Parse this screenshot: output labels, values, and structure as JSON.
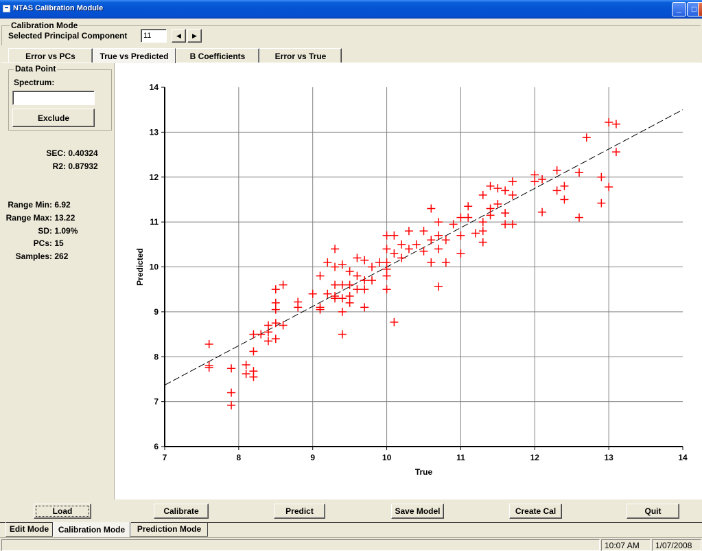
{
  "window": {
    "title": "NTAS Calibration Module"
  },
  "calibration_group": {
    "label": "Calibration Mode",
    "pc_label": "Selected Principal Component",
    "pc_value": "11",
    "prev_symbol": "◀",
    "next_symbol": "▶"
  },
  "view_tabs": [
    {
      "label": "Error vs PCs",
      "active": false
    },
    {
      "label": "True vs Predicted",
      "active": true
    },
    {
      "label": "B Coefficients",
      "active": false
    },
    {
      "label": "Error vs True",
      "active": false
    }
  ],
  "data_point": {
    "label": "Data Point",
    "spectrum_label": "Spectrum:",
    "spectrum_value": "",
    "exclude_label": "Exclude"
  },
  "stats": {
    "sec_label": "SEC:",
    "sec_value": "0.40324",
    "r2_label": "R2:",
    "r2_value": "0.87932",
    "range_min_label": "Range Min:",
    "range_min_value": "6.92",
    "range_max_label": "Range Max:",
    "range_max_value": "13.22",
    "sd_label": "SD:",
    "sd_value": "1.09%",
    "pcs_label": "PCs:",
    "pcs_value": "15",
    "samples_label": "Samples:",
    "samples_value": "262"
  },
  "actions": {
    "load": "Load",
    "calibrate": "Calibrate",
    "predict": "Predict",
    "save_model": "Save Model",
    "create_cal": "Create Cal",
    "quit": "Quit"
  },
  "mode_tabs": [
    {
      "label": "Edit Mode",
      "active": false
    },
    {
      "label": "Calibration Mode",
      "active": true
    },
    {
      "label": "Prediction Mode",
      "active": false
    }
  ],
  "status": {
    "time": "10:07 AM",
    "date": "1/07/2008"
  },
  "colors": {
    "marker": "#ff0000",
    "fit_line": "#000000",
    "grid": "#808080"
  },
  "chart_data": {
    "type": "scatter",
    "xlabel": "True",
    "ylabel": "Predicted",
    "xlim": [
      7,
      14
    ],
    "ylim": [
      6,
      14
    ],
    "xticks": [
      7,
      8,
      9,
      10,
      11,
      12,
      13,
      14
    ],
    "yticks": [
      6,
      7,
      8,
      9,
      10,
      11,
      12,
      13,
      14
    ],
    "grid": true,
    "marker": "plus",
    "fit_line": {
      "x": [
        7,
        14
      ],
      "y": [
        7.37,
        13.5
      ],
      "style": "dashed"
    },
    "points": [
      [
        7.6,
        8.28
      ],
      [
        7.6,
        7.8
      ],
      [
        7.6,
        7.76
      ],
      [
        7.9,
        7.74
      ],
      [
        7.9,
        7.2
      ],
      [
        7.9,
        6.92
      ],
      [
        8.1,
        7.82
      ],
      [
        8.1,
        7.62
      ],
      [
        8.2,
        8.5
      ],
      [
        8.2,
        8.12
      ],
      [
        8.2,
        7.68
      ],
      [
        8.2,
        7.55
      ],
      [
        8.3,
        8.5
      ],
      [
        8.4,
        8.7
      ],
      [
        8.4,
        8.55
      ],
      [
        8.4,
        8.35
      ],
      [
        8.5,
        9.5
      ],
      [
        8.5,
        9.2
      ],
      [
        8.5,
        9.05
      ],
      [
        8.5,
        8.75
      ],
      [
        8.5,
        8.4
      ],
      [
        8.6,
        9.6
      ],
      [
        8.6,
        8.7
      ],
      [
        8.8,
        9.22
      ],
      [
        8.8,
        9.1
      ],
      [
        9.0,
        9.4
      ],
      [
        9.1,
        9.8
      ],
      [
        9.1,
        9.1
      ],
      [
        9.1,
        9.05
      ],
      [
        9.2,
        10.1
      ],
      [
        9.2,
        9.4
      ],
      [
        9.3,
        10.4
      ],
      [
        9.3,
        10.0
      ],
      [
        9.3,
        9.6
      ],
      [
        9.3,
        9.35
      ],
      [
        9.3,
        9.3
      ],
      [
        9.4,
        10.05
      ],
      [
        9.4,
        9.6
      ],
      [
        9.4,
        9.3
      ],
      [
        9.4,
        9.0
      ],
      [
        9.4,
        8.5
      ],
      [
        9.5,
        9.9
      ],
      [
        9.5,
        9.6
      ],
      [
        9.5,
        9.35
      ],
      [
        9.5,
        9.2
      ],
      [
        9.6,
        10.2
      ],
      [
        9.6,
        9.8
      ],
      [
        9.6,
        9.5
      ],
      [
        9.7,
        10.15
      ],
      [
        9.7,
        9.7
      ],
      [
        9.7,
        9.5
      ],
      [
        9.7,
        9.1
      ],
      [
        9.8,
        10.0
      ],
      [
        9.8,
        9.7
      ],
      [
        9.9,
        10.1
      ],
      [
        10.0,
        10.7
      ],
      [
        10.0,
        10.4
      ],
      [
        10.0,
        10.1
      ],
      [
        10.0,
        9.95
      ],
      [
        10.0,
        9.8
      ],
      [
        10.0,
        9.5
      ],
      [
        10.1,
        10.7
      ],
      [
        10.1,
        10.3
      ],
      [
        10.1,
        8.77
      ],
      [
        10.2,
        10.5
      ],
      [
        10.2,
        10.2
      ],
      [
        10.3,
        10.8
      ],
      [
        10.3,
        10.4
      ],
      [
        10.4,
        10.5
      ],
      [
        10.5,
        10.8
      ],
      [
        10.5,
        10.35
      ],
      [
        10.6,
        11.3
      ],
      [
        10.6,
        10.6
      ],
      [
        10.6,
        10.1
      ],
      [
        10.7,
        11.0
      ],
      [
        10.7,
        10.7
      ],
      [
        10.7,
        10.4
      ],
      [
        10.7,
        9.56
      ],
      [
        10.8,
        10.6
      ],
      [
        10.8,
        10.1
      ],
      [
        10.9,
        10.95
      ],
      [
        11.0,
        11.1
      ],
      [
        11.0,
        10.7
      ],
      [
        11.0,
        10.3
      ],
      [
        11.1,
        11.35
      ],
      [
        11.1,
        11.1
      ],
      [
        11.2,
        10.75
      ],
      [
        11.3,
        11.6
      ],
      [
        11.3,
        11.0
      ],
      [
        11.3,
        10.8
      ],
      [
        11.3,
        10.55
      ],
      [
        11.4,
        11.8
      ],
      [
        11.4,
        11.3
      ],
      [
        11.4,
        11.15
      ],
      [
        11.5,
        11.75
      ],
      [
        11.5,
        11.4
      ],
      [
        11.6,
        11.7
      ],
      [
        11.6,
        11.2
      ],
      [
        11.6,
        10.95
      ],
      [
        11.7,
        11.9
      ],
      [
        11.7,
        11.6
      ],
      [
        11.7,
        10.95
      ],
      [
        12.0,
        12.05
      ],
      [
        12.0,
        11.9
      ],
      [
        12.1,
        11.95
      ],
      [
        12.1,
        11.22
      ],
      [
        12.3,
        12.15
      ],
      [
        12.3,
        11.7
      ],
      [
        12.4,
        11.8
      ],
      [
        12.4,
        11.5
      ],
      [
        12.6,
        12.1
      ],
      [
        12.6,
        11.1
      ],
      [
        12.7,
        12.88
      ],
      [
        12.9,
        12.0
      ],
      [
        12.9,
        11.42
      ],
      [
        13.0,
        13.22
      ],
      [
        13.0,
        11.78
      ],
      [
        13.1,
        13.18
      ],
      [
        13.1,
        12.56
      ]
    ]
  }
}
